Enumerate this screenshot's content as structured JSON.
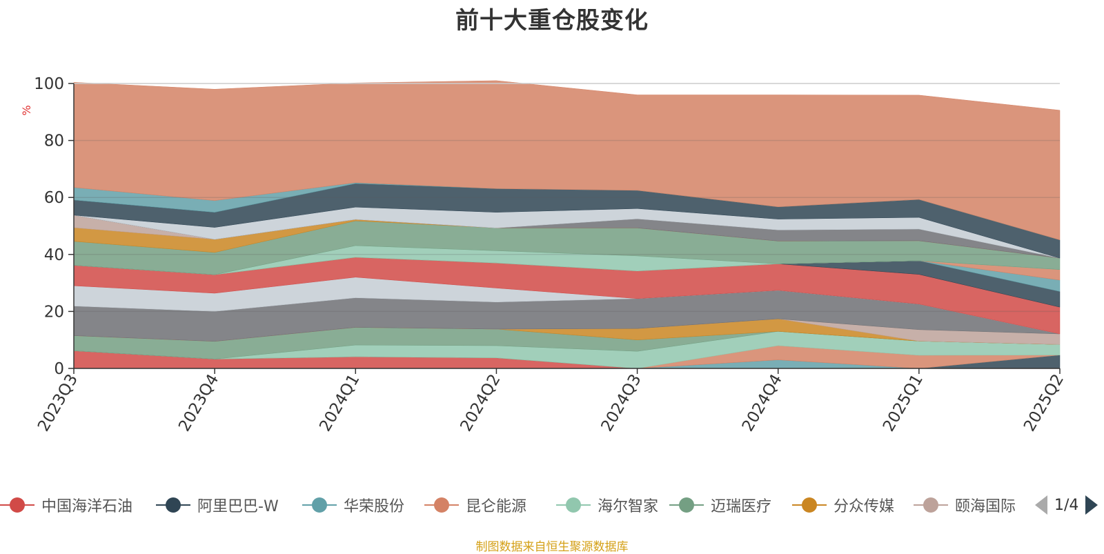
{
  "title": "前十大重仓股变化",
  "footer": "制图数据来自恒生聚源数据库",
  "pager": {
    "text": "1/4"
  },
  "chart_data": {
    "type": "area",
    "stacked": true,
    "title": "前十大重仓股变化",
    "ylabel": "%",
    "ylim": [
      0,
      100
    ],
    "yticks": [
      0,
      20,
      40,
      60,
      80,
      100
    ],
    "grid": true,
    "legend_position": "bottom",
    "categories": [
      "2023Q3",
      "2023Q4",
      "2024Q1",
      "2024Q2",
      "2024Q3",
      "2024Q4",
      "2025Q1",
      "2025Q2"
    ],
    "series": [
      {
        "name": "中国海洋石油",
        "color": "#d14a47",
        "values": [
          6.2,
          3.3,
          4.1,
          3.7,
          0,
          0,
          0,
          0
        ]
      },
      {
        "name": "阿里巴巴-W",
        "color": "#2f4554",
        "values": [
          0,
          0,
          0,
          0,
          0,
          0,
          0,
          4.7
        ]
      },
      {
        "name": "华荣股份",
        "color": "#61a0a8",
        "values": [
          0,
          0,
          0,
          0,
          0,
          3.0,
          0,
          0
        ]
      },
      {
        "name": "昆仑能源",
        "color": "#d48265",
        "values": [
          0,
          0,
          0,
          0,
          0,
          5.0,
          4.6,
          0
        ]
      },
      {
        "name": "海尔智家",
        "color": "#91c7ae",
        "values": [
          0,
          0,
          4.1,
          4.3,
          6.0,
          5.0,
          5.0,
          3.7
        ]
      },
      {
        "name": "迈瑞医疗",
        "color": "#749f83",
        "values": [
          5.3,
          6.2,
          6.2,
          5.8,
          4.0,
          0,
          0,
          0
        ]
      },
      {
        "name": "分众传媒",
        "color": "#ca8622",
        "values": [
          0,
          0,
          0,
          0,
          4.0,
          4.4,
          0,
          0
        ]
      },
      {
        "name": "颐海国际",
        "color": "#bda29a",
        "values": [
          0,
          0,
          0,
          0,
          0,
          0,
          4.0,
          3.7
        ]
      },
      {
        "name": "",
        "color": "#6e7074",
        "values": [
          10.4,
          10.5,
          10.4,
          9.5,
          10.5,
          10.0,
          9.0,
          0
        ]
      },
      {
        "name": "",
        "color": "#c4ccd3",
        "values": [
          7.1,
          6.4,
          7.2,
          4.9,
          0,
          0,
          0,
          0
        ]
      },
      {
        "name": "",
        "color": "#d14a47",
        "values": [
          7.2,
          6.5,
          7.0,
          8.8,
          9.7,
          9.3,
          10.4,
          9.4
        ]
      },
      {
        "name": "",
        "color": "#2f4554",
        "values": [
          0,
          0,
          0,
          0,
          0,
          0,
          4.8,
          5.5
        ]
      },
      {
        "name": "",
        "color": "#61a0a8",
        "values": [
          0,
          0,
          0,
          0,
          0,
          0,
          0,
          4.0
        ]
      },
      {
        "name": "",
        "color": "#d48265",
        "values": [
          0,
          0,
          0,
          0,
          0,
          0,
          0,
          3.7
        ]
      },
      {
        "name": "",
        "color": "#91c7ae",
        "values": [
          0,
          0,
          4.1,
          4.3,
          5.3,
          0,
          0,
          0
        ]
      },
      {
        "name": "",
        "color": "#749f83",
        "values": [
          8.4,
          7.8,
          8.7,
          8.0,
          9.8,
          8.0,
          7.0,
          4.0
        ]
      },
      {
        "name": "",
        "color": "#ca8622",
        "values": [
          4.8,
          4.6,
          0.5,
          0,
          0,
          0,
          0,
          0
        ]
      },
      {
        "name": "",
        "color": "#bda29a",
        "values": [
          4.4,
          0,
          0,
          0,
          0,
          0,
          0,
          0
        ]
      },
      {
        "name": "",
        "color": "#6e7074",
        "values": [
          0,
          0,
          0,
          0,
          3.2,
          3.9,
          4.1,
          0
        ]
      },
      {
        "name": "",
        "color": "#c4ccd3",
        "values": [
          0,
          4.2,
          4.3,
          5.5,
          3.6,
          3.8,
          4.1,
          0
        ]
      },
      {
        "name": "",
        "color": "#2f4554",
        "values": [
          5.3,
          5.3,
          8.3,
          8.3,
          6.4,
          4.3,
          6.3,
          6.4
        ]
      },
      {
        "name": "",
        "color": "#61a0a8",
        "values": [
          4.4,
          4.1,
          0.3,
          0,
          0,
          0,
          0,
          0
        ]
      },
      {
        "name": "",
        "color": "#d48265",
        "values": [
          36.9,
          39.1,
          35.0,
          37.9,
          33.5,
          39.3,
          36.6,
          45.5
        ]
      }
    ]
  }
}
